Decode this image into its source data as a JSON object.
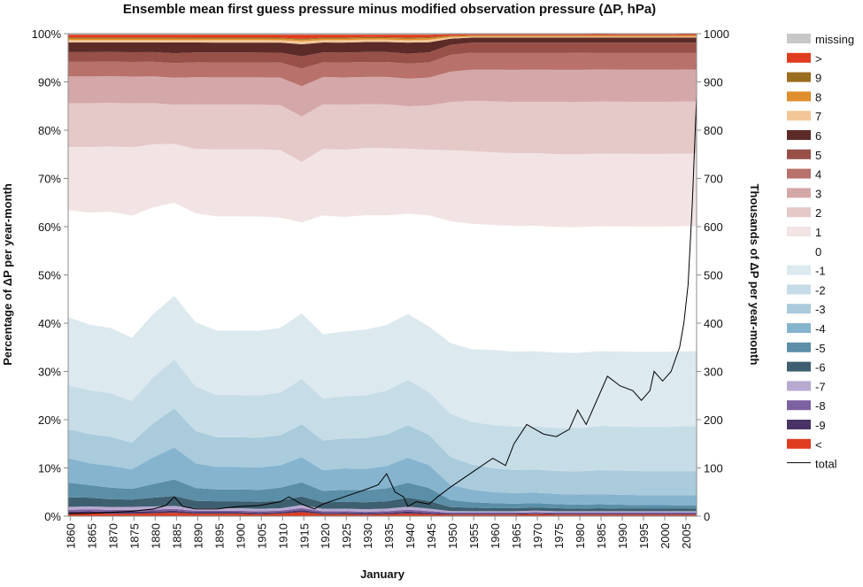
{
  "chart_data": {
    "type": "area",
    "title": "Ensemble mean first guess pressure minus modified observation pressure (ΔP, hPa)",
    "xlabel": "January",
    "ylabel_left": "Percentage of ΔP per year-month",
    "ylabel_right": "Thousands of ΔP per year-month",
    "x": [
      1860,
      1865,
      1870,
      1875,
      1880,
      1885,
      1890,
      1895,
      1900,
      1905,
      1910,
      1915,
      1920,
      1925,
      1930,
      1935,
      1940,
      1945,
      1950,
      1955,
      1960,
      1965,
      1970,
      1975,
      1980,
      1985,
      1990,
      1995,
      2000,
      2005,
      2008
    ],
    "x_ticks": [
      "1860",
      "1865",
      "1870",
      "1875",
      "1880",
      "1885",
      "1890",
      "1895",
      "1900",
      "1905",
      "1910",
      "1915",
      "1920",
      "1925",
      "1930",
      "1935",
      "1940",
      "1945",
      "1950",
      "1955",
      "1960",
      "1965",
      "1970",
      "1975",
      "1980",
      "1985",
      "1990",
      "1995",
      "2000",
      "2005"
    ],
    "y_left_ticks": [
      "0%",
      "10%",
      "20%",
      "30%",
      "40%",
      "50%",
      "60%",
      "70%",
      "80%",
      "90%",
      "100%"
    ],
    "y_right_ticks": [
      "0",
      "100",
      "200",
      "300",
      "400",
      "500",
      "600",
      "700",
      "800",
      "900",
      "1000"
    ],
    "ylim_left": [
      0,
      100
    ],
    "ylim_right": [
      0,
      1000
    ],
    "legend_position": "right",
    "series": [
      {
        "name": "<",
        "color": "#e03c1f",
        "values": [
          0.5,
          0.6,
          0.5,
          0.5,
          0.6,
          0.7,
          0.5,
          0.5,
          0.5,
          0.4,
          0.5,
          0.8,
          0.4,
          0.4,
          0.3,
          0.4,
          0.5,
          0.4,
          0.3,
          0.3,
          0.3,
          0.3,
          0.4,
          0.3,
          0.3,
          0.3,
          0.3,
          0.3,
          0.3,
          0.3,
          0.3
        ]
      },
      {
        "name": "-9",
        "color": "#4a3466",
        "values": [
          0.4,
          0.4,
          0.4,
          0.4,
          0.4,
          0.4,
          0.3,
          0.3,
          0.3,
          0.3,
          0.3,
          0.4,
          0.3,
          0.3,
          0.3,
          0.3,
          0.4,
          0.3,
          0.2,
          0.2,
          0.2,
          0.2,
          0.2,
          0.2,
          0.2,
          0.2,
          0.2,
          0.2,
          0.2,
          0.2,
          0.2
        ]
      },
      {
        "name": "-8",
        "color": "#7b62a0",
        "values": [
          0.4,
          0.4,
          0.4,
          0.4,
          0.4,
          0.4,
          0.3,
          0.3,
          0.3,
          0.3,
          0.3,
          0.4,
          0.3,
          0.3,
          0.3,
          0.3,
          0.4,
          0.3,
          0.2,
          0.2,
          0.2,
          0.2,
          0.2,
          0.2,
          0.2,
          0.2,
          0.2,
          0.2,
          0.2,
          0.2,
          0.2
        ]
      },
      {
        "name": "-7",
        "color": "#b8a9d0",
        "values": [
          0.6,
          0.6,
          0.6,
          0.6,
          0.6,
          0.6,
          0.5,
          0.5,
          0.5,
          0.5,
          0.5,
          0.6,
          0.5,
          0.5,
          0.5,
          0.5,
          0.6,
          0.5,
          0.3,
          0.3,
          0.3,
          0.3,
          0.3,
          0.3,
          0.3,
          0.3,
          0.3,
          0.3,
          0.3,
          0.3,
          0.3
        ]
      },
      {
        "name": "-6",
        "color": "#3d5f6f",
        "values": [
          2.0,
          1.8,
          1.6,
          1.5,
          1.8,
          2.0,
          1.5,
          1.4,
          1.4,
          1.4,
          1.5,
          1.7,
          1.3,
          1.4,
          1.4,
          1.5,
          1.8,
          1.5,
          0.8,
          0.7,
          0.6,
          0.6,
          0.6,
          0.6,
          0.5,
          0.6,
          0.5,
          0.5,
          0.5,
          0.5,
          0.5
        ]
      },
      {
        "name": "-5",
        "color": "#5b8fa8",
        "values": [
          3.0,
          2.6,
          2.4,
          2.2,
          2.8,
          3.4,
          2.6,
          2.4,
          2.4,
          2.4,
          2.6,
          2.8,
          2.3,
          2.4,
          2.4,
          2.6,
          3.0,
          2.6,
          1.4,
          1.1,
          1.0,
          0.9,
          0.9,
          0.8,
          0.8,
          0.8,
          0.8,
          0.7,
          0.7,
          0.7,
          0.7
        ]
      },
      {
        "name": "-4",
        "color": "#86b4cf",
        "values": [
          5.0,
          4.5,
          4.5,
          4.0,
          5.5,
          6.5,
          5.0,
          4.5,
          4.5,
          4.5,
          4.5,
          5.0,
          4.2,
          4.3,
          4.3,
          4.5,
          5.0,
          4.5,
          3.0,
          2.5,
          2.2,
          2.1,
          2.1,
          2.0,
          2.0,
          2.0,
          2.0,
          2.0,
          2.0,
          2.0,
          2.0
        ]
      },
      {
        "name": "-3",
        "color": "#a9cbdc",
        "values": [
          6.0,
          6.0,
          6.0,
          5.5,
          7.0,
          8.0,
          6.5,
          6.0,
          6.0,
          6.0,
          6.0,
          6.5,
          6.0,
          6.0,
          6.2,
          6.3,
          6.5,
          6.0,
          5.5,
          5.0,
          4.8,
          4.6,
          4.6,
          4.6,
          4.6,
          4.8,
          4.8,
          4.8,
          4.8,
          4.8,
          4.8
        ]
      },
      {
        "name": "-2",
        "color": "#c6dde8",
        "values": [
          9.0,
          9.0,
          9.0,
          8.5,
          9.5,
          10.0,
          9.0,
          8.5,
          8.5,
          8.5,
          8.5,
          9.0,
          8.5,
          8.5,
          8.6,
          8.8,
          9.0,
          8.5,
          8.5,
          8.5,
          8.6,
          8.6,
          8.6,
          8.6,
          8.6,
          8.8,
          8.8,
          8.8,
          8.8,
          9.0,
          9.0
        ]
      },
      {
        "name": "-1",
        "color": "#dce9ef",
        "values": [
          14.0,
          13.5,
          13.5,
          13.0,
          13.0,
          13.0,
          13.0,
          13.0,
          13.0,
          13.0,
          13.0,
          13.0,
          13.0,
          13.0,
          13.2,
          13.2,
          13.2,
          13.0,
          14.0,
          14.5,
          15.0,
          15.0,
          15.0,
          15.0,
          15.0,
          15.0,
          15.0,
          15.0,
          15.0,
          15.0,
          15.0
        ]
      },
      {
        "name": "0",
        "color": "#ffffff",
        "values": [
          22.0,
          23.0,
          24.0,
          25.0,
          22.0,
          19.0,
          22.0,
          23.0,
          23.0,
          23.0,
          22.0,
          18.0,
          24.0,
          23.0,
          23.0,
          22.0,
          20.0,
          22.0,
          24.0,
          25.0,
          25.0,
          25.0,
          25.0,
          25.0,
          25.0,
          25.0,
          25.0,
          25.0,
          25.0,
          25.0,
          25.0
        ]
      },
      {
        "name": "1",
        "color": "#f2e4e4",
        "values": [
          13.0,
          13.5,
          13.5,
          14.0,
          13.0,
          12.0,
          13.0,
          13.5,
          13.5,
          13.5,
          13.5,
          12.0,
          13.5,
          13.5,
          13.5,
          13.5,
          13.0,
          13.0,
          14.0,
          14.5,
          14.5,
          14.5,
          14.5,
          14.5,
          14.5,
          14.5,
          14.5,
          14.5,
          14.5,
          14.5,
          14.5
        ]
      },
      {
        "name": "2",
        "color": "#e5c8c8",
        "values": [
          9.0,
          9.0,
          9.0,
          9.0,
          8.5,
          8.0,
          9.0,
          9.0,
          9.0,
          9.0,
          9.0,
          9.0,
          9.0,
          9.0,
          8.8,
          8.8,
          8.5,
          8.8,
          9.5,
          10.0,
          10.2,
          10.2,
          10.2,
          10.4,
          10.4,
          10.4,
          10.4,
          10.4,
          10.4,
          10.4,
          10.4
        ]
      },
      {
        "name": "3",
        "color": "#d4a8a8",
        "values": [
          5.5,
          5.5,
          5.5,
          5.5,
          5.5,
          5.5,
          5.5,
          5.5,
          5.5,
          5.5,
          5.5,
          6.0,
          5.5,
          5.5,
          5.5,
          5.5,
          5.5,
          5.5,
          6.0,
          6.2,
          6.3,
          6.4,
          6.4,
          6.4,
          6.4,
          6.4,
          6.4,
          6.4,
          6.4,
          6.4,
          6.4
        ]
      },
      {
        "name": "4",
        "color": "#b9716b",
        "values": [
          3.0,
          3.0,
          3.0,
          3.0,
          3.0,
          3.0,
          3.0,
          3.0,
          3.0,
          3.0,
          3.0,
          3.5,
          3.0,
          3.0,
          3.0,
          3.0,
          3.0,
          3.0,
          3.3,
          3.4,
          3.4,
          3.4,
          3.4,
          3.4,
          3.4,
          3.4,
          3.4,
          3.4,
          3.4,
          3.4,
          3.4
        ]
      },
      {
        "name": "5",
        "color": "#985049",
        "values": [
          2.0,
          2.0,
          2.0,
          2.0,
          2.0,
          2.0,
          2.0,
          2.0,
          2.0,
          2.0,
          2.0,
          2.4,
          2.0,
          2.0,
          2.0,
          2.0,
          2.0,
          2.0,
          2.0,
          2.0,
          2.0,
          2.0,
          2.0,
          2.0,
          2.0,
          2.0,
          2.0,
          2.0,
          2.0,
          2.0,
          2.0
        ]
      },
      {
        "name": "6",
        "color": "#5c2b28",
        "values": [
          2.0,
          2.0,
          2.0,
          2.0,
          2.0,
          2.2,
          2.0,
          2.0,
          2.0,
          2.0,
          2.0,
          2.4,
          2.0,
          2.0,
          2.0,
          2.0,
          2.2,
          2.0,
          1.2,
          1.0,
          1.0,
          1.0,
          1.0,
          1.0,
          1.0,
          1.0,
          1.0,
          1.0,
          1.0,
          1.0,
          1.0
        ]
      },
      {
        "name": "7",
        "color": "#f2c696",
        "values": [
          0.5,
          0.5,
          0.5,
          0.5,
          0.5,
          0.5,
          0.5,
          0.5,
          0.5,
          0.5,
          0.5,
          0.6,
          0.5,
          0.5,
          0.5,
          0.5,
          0.5,
          0.5,
          0.3,
          0.2,
          0.2,
          0.2,
          0.2,
          0.2,
          0.2,
          0.2,
          0.2,
          0.2,
          0.2,
          0.2,
          0.2
        ]
      },
      {
        "name": "8",
        "color": "#df8e2c",
        "values": [
          0.3,
          0.3,
          0.3,
          0.3,
          0.3,
          0.3,
          0.3,
          0.3,
          0.3,
          0.3,
          0.3,
          0.3,
          0.3,
          0.3,
          0.3,
          0.3,
          0.3,
          0.3,
          0.2,
          0.2,
          0.2,
          0.2,
          0.2,
          0.2,
          0.2,
          0.2,
          0.2,
          0.2,
          0.2,
          0.2,
          0.2
        ]
      },
      {
        "name": "9",
        "color": "#9b6d1f",
        "values": [
          0.2,
          0.2,
          0.2,
          0.2,
          0.2,
          0.2,
          0.2,
          0.2,
          0.2,
          0.2,
          0.2,
          0.2,
          0.2,
          0.2,
          0.2,
          0.2,
          0.2,
          0.2,
          0.1,
          0.1,
          0.1,
          0.1,
          0.1,
          0.1,
          0.1,
          0.1,
          0.1,
          0.1,
          0.1,
          0.1,
          0.1
        ]
      },
      {
        "name": ">",
        "color": "#e03c1f",
        "values": [
          0.6,
          0.6,
          0.6,
          0.6,
          0.6,
          0.6,
          0.6,
          0.6,
          0.6,
          0.6,
          0.6,
          0.8,
          0.6,
          0.6,
          0.5,
          0.5,
          0.6,
          0.5,
          0.3,
          0.2,
          0.2,
          0.2,
          0.2,
          0.2,
          0.2,
          0.2,
          0.2,
          0.2,
          0.2,
          0.2,
          0.2
        ]
      },
      {
        "name": "missing",
        "color": "#c8c8c8",
        "values": [
          0.2,
          0.2,
          0.2,
          0.2,
          0.2,
          0.2,
          0.2,
          0.2,
          0.2,
          0.2,
          0.2,
          0.2,
          0.2,
          0.2,
          0.2,
          0.2,
          0.2,
          0.2,
          0.1,
          0.1,
          0.1,
          0.1,
          0.1,
          0.1,
          0.1,
          0.1,
          0.1,
          0.1,
          0.1,
          0.1,
          0.1
        ]
      }
    ],
    "total": {
      "name": "total",
      "color": "#000000",
      "x": [
        1860,
        1865,
        1870,
        1875,
        1880,
        1883,
        1885,
        1887,
        1890,
        1895,
        1900,
        1905,
        1910,
        1912,
        1915,
        1918,
        1920,
        1925,
        1930,
        1933,
        1935,
        1937,
        1939,
        1940,
        1942,
        1945,
        1947,
        1950,
        1955,
        1960,
        1963,
        1965,
        1968,
        1970,
        1972,
        1975,
        1978,
        1980,
        1982,
        1985,
        1987,
        1990,
        1993,
        1995,
        1997,
        1998,
        2000,
        2002,
        2004,
        2005,
        2006,
        2007,
        2008
      ],
      "values": [
        5,
        6,
        8,
        10,
        15,
        22,
        40,
        20,
        15,
        15,
        20,
        22,
        30,
        40,
        25,
        15,
        25,
        40,
        55,
        65,
        88,
        50,
        40,
        20,
        30,
        25,
        40,
        60,
        90,
        120,
        105,
        150,
        190,
        180,
        170,
        165,
        180,
        220,
        190,
        250,
        290,
        270,
        260,
        240,
        260,
        300,
        280,
        300,
        350,
        400,
        480,
        650,
        870
      ]
    }
  },
  "legend": {
    "items": [
      {
        "label": "missing",
        "color": "#c8c8c8"
      },
      {
        "label": ">",
        "color": "#e03c1f"
      },
      {
        "label": "9",
        "color": "#9b6d1f"
      },
      {
        "label": "8",
        "color": "#df8e2c"
      },
      {
        "label": "7",
        "color": "#f2c696"
      },
      {
        "label": "6",
        "color": "#5c2b28"
      },
      {
        "label": "5",
        "color": "#985049"
      },
      {
        "label": "4",
        "color": "#b9716b"
      },
      {
        "label": "3",
        "color": "#d4a8a8"
      },
      {
        "label": "2",
        "color": "#e5c8c8"
      },
      {
        "label": "1",
        "color": "#f2e4e4"
      },
      {
        "label": "0",
        "color": "#ffffff"
      },
      {
        "label": "-1",
        "color": "#dce9ef"
      },
      {
        "label": "-2",
        "color": "#c6dde8"
      },
      {
        "label": "-3",
        "color": "#a9cbdc"
      },
      {
        "label": "-4",
        "color": "#86b4cf"
      },
      {
        "label": "-5",
        "color": "#5b8fa8"
      },
      {
        "label": "-6",
        "color": "#3d5f6f"
      },
      {
        "label": "-7",
        "color": "#b8a9d0"
      },
      {
        "label": "-8",
        "color": "#7b62a0"
      },
      {
        "label": "-9",
        "color": "#4a3466"
      },
      {
        "label": "<",
        "color": "#e03c1f"
      },
      {
        "label": "total",
        "color": "#000000",
        "line": true
      }
    ]
  }
}
